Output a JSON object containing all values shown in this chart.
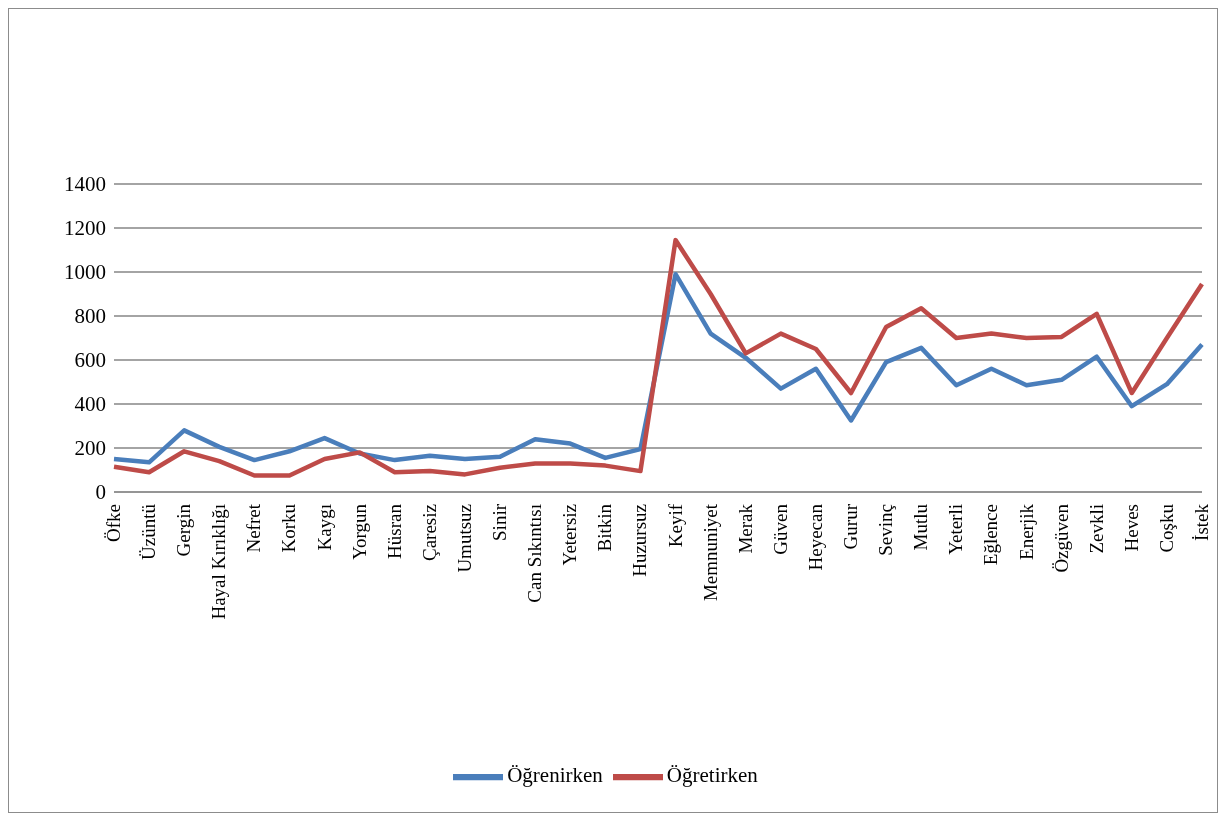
{
  "chart_data": {
    "type": "line",
    "categories": [
      "Öfke",
      "Üzüntü",
      "Gergin",
      "Hayal Kırıklığı",
      "Nefret",
      "Korku",
      "Kaygı",
      "Yorgun",
      "Hüsran",
      "Çaresiz",
      "Umutsuz",
      "Sinir",
      "Can Sıkıntısı",
      "Yetersiz",
      "Bitkin",
      "Huzursuz",
      "Keyif",
      "Memnuniyet",
      "Merak",
      "Güven",
      "Heyecan",
      "Gurur",
      "Sevinç",
      "Mutlu",
      "Yeterli",
      "Eğlence",
      "Enerjik",
      "Özgüven",
      "Zevkli",
      "Heves",
      "Coşku",
      "İstek"
    ],
    "series": [
      {
        "name": "Öğrenirken",
        "color": "#4a7ebb",
        "values": [
          150,
          135,
          280,
          205,
          145,
          185,
          245,
          175,
          145,
          165,
          150,
          160,
          240,
          220,
          155,
          195,
          990,
          720,
          610,
          470,
          560,
          325,
          590,
          655,
          485,
          560,
          485,
          510,
          615,
          390,
          490,
          670
        ]
      },
      {
        "name": "Öğretirken",
        "color": "#be4b48",
        "values": [
          115,
          90,
          185,
          140,
          75,
          75,
          150,
          180,
          90,
          95,
          80,
          110,
          130,
          130,
          120,
          95,
          1145,
          900,
          630,
          720,
          650,
          450,
          750,
          835,
          700,
          720,
          700,
          705,
          810,
          450,
          700,
          945
        ]
      }
    ],
    "ylim": [
      0,
      1400
    ],
    "yticks": [
      0,
      200,
      400,
      600,
      800,
      1000,
      1200,
      1400
    ],
    "grid": "y",
    "legend": "bottom",
    "marker": "none",
    "line_style": "solid"
  }
}
